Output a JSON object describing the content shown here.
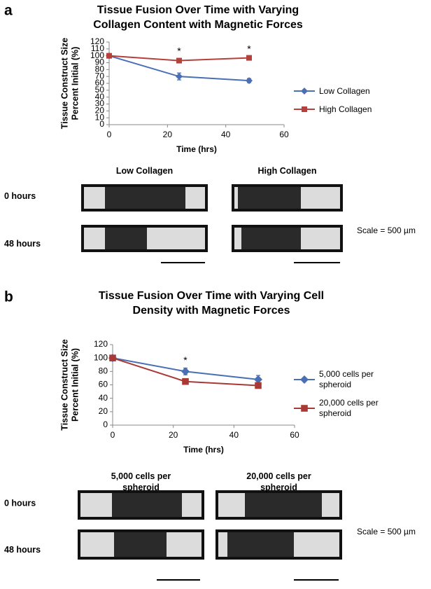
{
  "panel_labels": [
    "a",
    "b"
  ],
  "chart_data": [
    {
      "type": "line",
      "title": "Tissue Fusion Over Time with Varying Collagen Content with Magnetic Forces",
      "xlabel": "Time (hrs)",
      "ylabel": [
        "Tissue Construct Size",
        "Percent Initial (%)"
      ],
      "x": [
        0,
        24,
        48
      ],
      "xlim": [
        0,
        60
      ],
      "xticks": [
        0,
        20,
        40,
        60
      ],
      "ylim": [
        0,
        120
      ],
      "yticks": [
        0,
        10,
        20,
        30,
        40,
        50,
        60,
        70,
        80,
        90,
        100,
        110,
        120
      ],
      "series": [
        {
          "name": "Low Collagen",
          "color": "#4a6fb5",
          "marker": "diamond",
          "values": [
            100,
            70,
            64
          ],
          "errors": [
            0,
            5,
            3
          ]
        },
        {
          "name": "High Collagen",
          "color": "#b5403c",
          "marker": "square",
          "values": [
            100,
            93,
            97
          ],
          "errors": [
            0,
            3,
            2
          ]
        }
      ],
      "significance": [
        {
          "x": 24,
          "label": "*"
        },
        {
          "x": 48,
          "label": "*"
        }
      ]
    },
    {
      "type": "line",
      "title": "Tissue Fusion Over Time with Varying Cell Density with Magnetic Forces",
      "xlabel": "Time (hrs)",
      "ylabel": [
        "Tissue Construct Size",
        "Percent Initial (%)"
      ],
      "x": [
        0,
        24,
        48
      ],
      "xlim": [
        0,
        60
      ],
      "xticks": [
        0,
        20,
        40,
        60
      ],
      "ylim": [
        0,
        120
      ],
      "yticks": [
        0,
        20,
        40,
        60,
        80,
        100,
        120
      ],
      "series": [
        {
          "name": "5,000 cells per spheroid",
          "color": "#4a6fb5",
          "marker": "diamond",
          "values": [
            100,
            80,
            68
          ],
          "errors": [
            0,
            5,
            6
          ]
        },
        {
          "name": "20,000 cells per spheroid",
          "color": "#a83a36",
          "marker": "square",
          "values": [
            100,
            65,
            59
          ],
          "errors": [
            0,
            3,
            4
          ]
        }
      ],
      "significance": [
        {
          "x": 24,
          "label": "*"
        }
      ]
    }
  ],
  "micrographs": [
    {
      "columns": [
        "Low Collagen",
        "High Collagen"
      ],
      "rows": [
        "0 hours",
        "48 hours"
      ],
      "scale": "Scale = 500 µm"
    },
    {
      "columns": [
        "5,000 cells per spheroid",
        "20,000 cells per spheroid"
      ],
      "rows": [
        "0 hours",
        "48 hours"
      ],
      "scale": "Scale = 500 µm"
    }
  ]
}
